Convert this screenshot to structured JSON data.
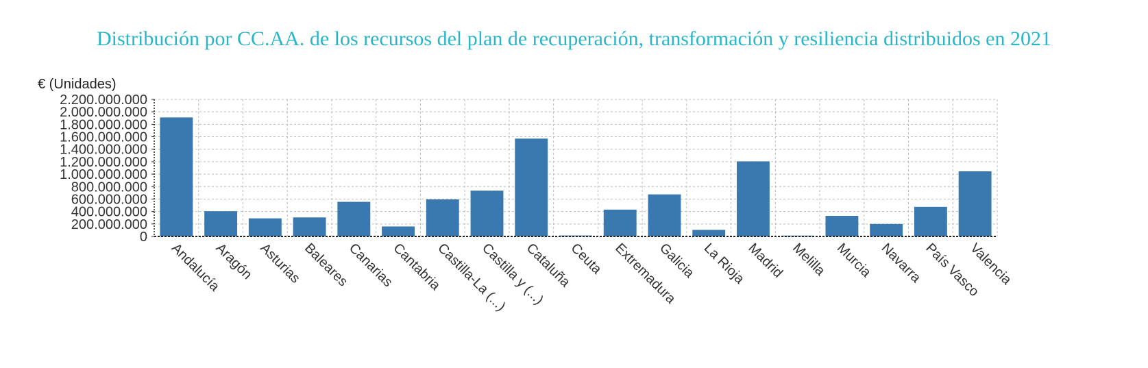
{
  "chart_data": {
    "type": "bar",
    "title": "Distribución por CC.AA. de los recursos del plan de recuperación, transformación y resiliencia distribuidos en 2021",
    "ylabel": "€ (Unidades)",
    "xlabel": "",
    "ylim": [
      0,
      2200000000
    ],
    "yticks": [
      {
        "value": 0,
        "label": "0"
      },
      {
        "value": 200000000,
        "label": "200.000.000"
      },
      {
        "value": 400000000,
        "label": "400.000.000"
      },
      {
        "value": 600000000,
        "label": "600.000.000"
      },
      {
        "value": 800000000,
        "label": "800.000.000"
      },
      {
        "value": 1000000000,
        "label": "1.000.000.000"
      },
      {
        "value": 1200000000,
        "label": "1.200.000.000"
      },
      {
        "value": 1400000000,
        "label": "1.400.000.000"
      },
      {
        "value": 1600000000,
        "label": "1.600.000.000"
      },
      {
        "value": 1800000000,
        "label": "1.800.000.000"
      },
      {
        "value": 2000000000,
        "label": "2.000.000.000"
      },
      {
        "value": 2200000000,
        "label": "2.200.000.000"
      }
    ],
    "categories": [
      "Andalucía",
      "Aragón",
      "Asturias",
      "Baleares",
      "Canarias",
      "Cantabria",
      "Castilla-La (...)",
      "Castilla y (...)",
      "Cataluña",
      "Ceuta",
      "Extremadura",
      "Galicia",
      "La Rioja",
      "Madrid",
      "Melilla",
      "Murcia",
      "Navarra",
      "País Vasco",
      "Valencia"
    ],
    "values": [
      1910000000,
      405000000,
      290000000,
      305000000,
      555000000,
      160000000,
      595000000,
      735000000,
      1570000000,
      15000000,
      430000000,
      675000000,
      105000000,
      1205000000,
      13000000,
      330000000,
      200000000,
      475000000,
      1045000000
    ],
    "grid": true,
    "legend": "none",
    "bar_color": "#3a79b0"
  }
}
